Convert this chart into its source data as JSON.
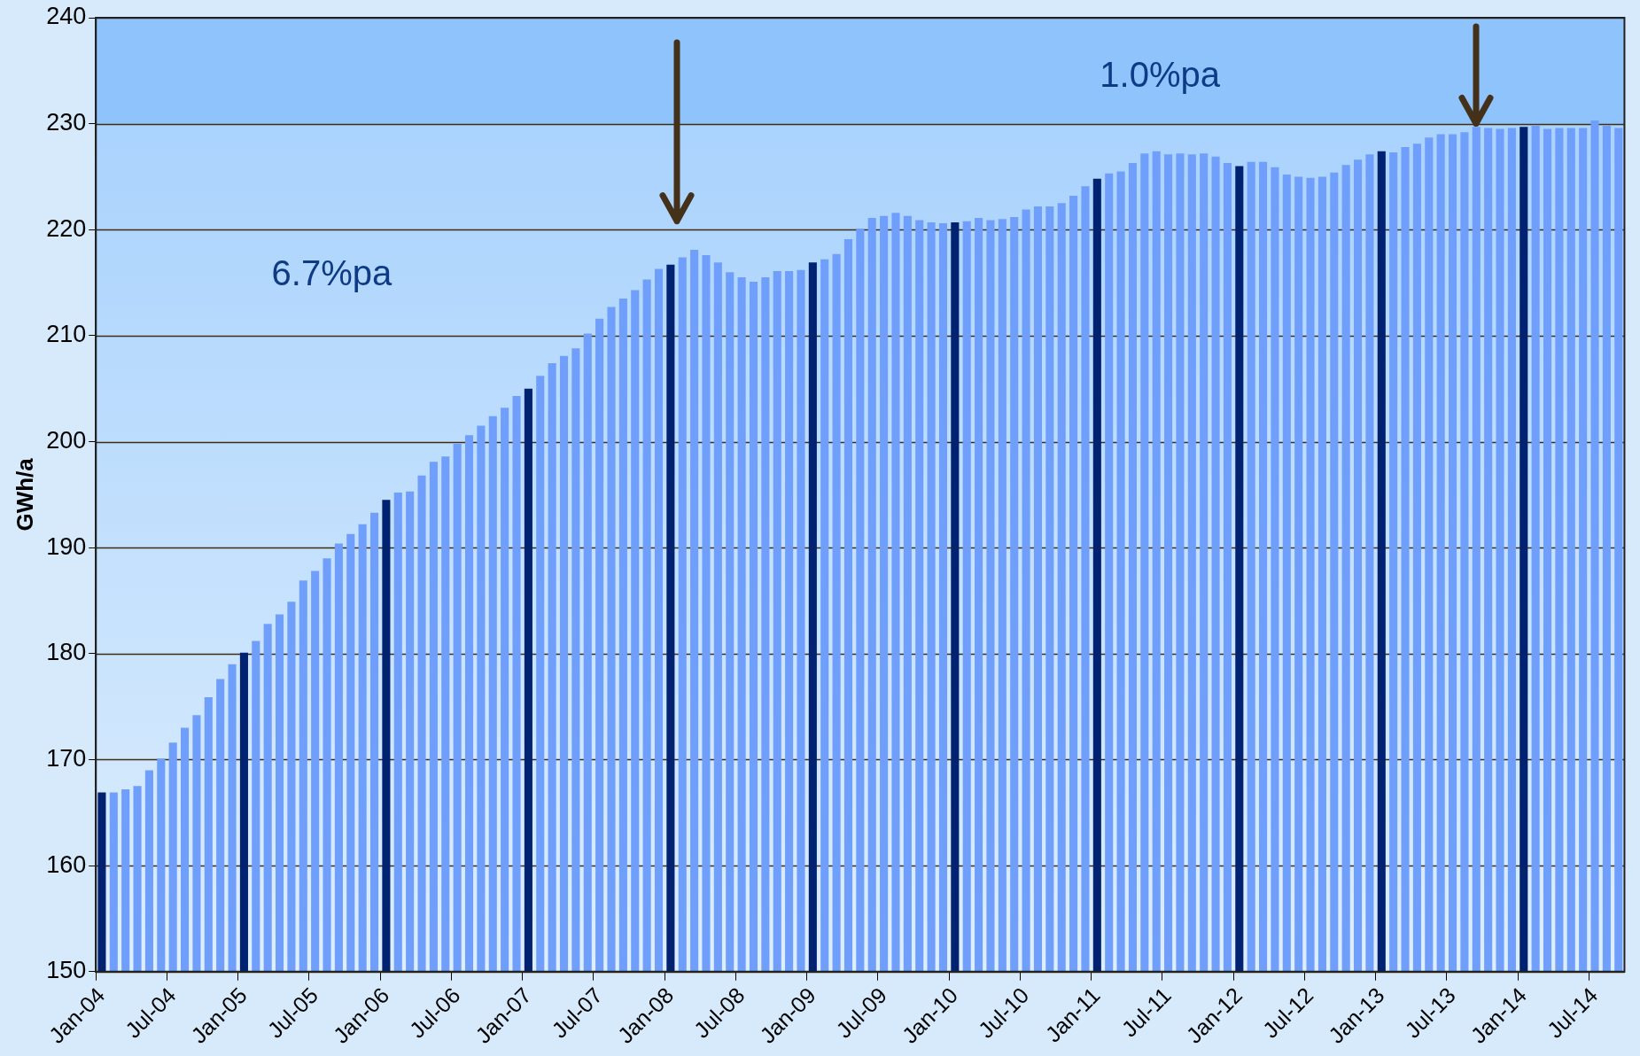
{
  "chart_data": {
    "type": "bar",
    "ylabel": "GWh/a",
    "categories": [
      "Jan-04",
      null,
      null,
      null,
      null,
      null,
      "Jul-04",
      null,
      null,
      null,
      null,
      null,
      "Jan-05",
      null,
      null,
      null,
      null,
      null,
      "Jul-05",
      null,
      null,
      null,
      null,
      null,
      "Jan-06",
      null,
      null,
      null,
      null,
      null,
      "Jul-06",
      null,
      null,
      null,
      null,
      null,
      "Jan-07",
      null,
      null,
      null,
      null,
      null,
      "Jul-07",
      null,
      null,
      null,
      null,
      null,
      "Jan-08",
      null,
      null,
      null,
      null,
      null,
      "Jul-08",
      null,
      null,
      null,
      null,
      null,
      "Jan-09",
      null,
      null,
      null,
      null,
      null,
      "Jul-09",
      null,
      null,
      null,
      null,
      null,
      "Jan-10",
      null,
      null,
      null,
      null,
      null,
      "Jul-10",
      null,
      null,
      null,
      null,
      null,
      "Jan-11",
      null,
      null,
      null,
      null,
      null,
      "Jul-11",
      null,
      null,
      null,
      null,
      null,
      "Jan-12",
      null,
      null,
      null,
      null,
      null,
      "Jul-12",
      null,
      null,
      null,
      null,
      null,
      "Jan-13",
      null,
      null,
      null,
      null,
      null,
      "Jul-13",
      null,
      null,
      null,
      null,
      null,
      "Jan-14",
      null,
      null,
      null,
      null,
      null,
      "Jul-14",
      null,
      null
    ],
    "values": [
      166.9,
      166.9,
      167.2,
      167.5,
      169.0,
      170.1,
      171.6,
      173.0,
      174.2,
      175.9,
      177.6,
      179.0,
      180.1,
      181.2,
      182.8,
      183.7,
      184.9,
      186.9,
      187.8,
      189.0,
      190.4,
      191.3,
      192.2,
      193.3,
      194.5,
      195.2,
      195.3,
      196.8,
      198.1,
      198.6,
      199.8,
      200.6,
      201.5,
      202.4,
      203.2,
      204.3,
      205.0,
      206.2,
      207.4,
      208.1,
      208.8,
      210.2,
      211.6,
      212.7,
      213.5,
      214.3,
      215.3,
      216.3,
      216.7,
      217.4,
      218.1,
      217.6,
      216.9,
      216.0,
      215.5,
      215.1,
      215.5,
      216.1,
      216.1,
      216.2,
      216.9,
      217.2,
      217.7,
      219.1,
      220.1,
      221.1,
      221.3,
      221.6,
      221.3,
      220.9,
      220.7,
      220.6,
      220.7,
      220.8,
      221.1,
      220.9,
      221.0,
      221.2,
      221.9,
      222.2,
      222.2,
      222.5,
      223.2,
      224.1,
      224.8,
      225.3,
      225.5,
      226.3,
      227.2,
      227.4,
      227.1,
      227.2,
      227.1,
      227.2,
      226.9,
      226.3,
      226.0,
      226.4,
      226.4,
      225.9,
      225.2,
      225.0,
      224.9,
      225.0,
      225.4,
      226.1,
      226.6,
      227.1,
      227.4,
      227.3,
      227.8,
      228.1,
      228.7,
      229.0,
      229.0,
      229.2,
      229.7,
      229.6,
      229.5,
      229.6,
      229.7,
      229.8,
      229.5,
      229.6,
      229.6,
      229.6,
      230.3,
      229.8,
      229.6
    ],
    "colors": [
      "#002270",
      "#6f9ffb",
      "#6f9ffb",
      "#6f9ffb",
      "#6f9ffb",
      "#6f9ffb",
      "#6f9ffb",
      "#6f9ffb",
      "#6f9ffb",
      "#6f9ffb",
      "#6f9ffb",
      "#6f9ffb",
      "#002270",
      "#6f9ffb",
      "#6f9ffb",
      "#6f9ffb",
      "#6f9ffb",
      "#6f9ffb",
      "#6f9ffb",
      "#6f9ffb",
      "#6f9ffb",
      "#6f9ffb",
      "#6f9ffb",
      "#6f9ffb",
      "#002270",
      "#6f9ffb",
      "#6f9ffb",
      "#6f9ffb",
      "#6f9ffb",
      "#6f9ffb",
      "#6f9ffb",
      "#6f9ffb",
      "#6f9ffb",
      "#6f9ffb",
      "#6f9ffb",
      "#6f9ffb",
      "#002270",
      "#6f9ffb",
      "#6f9ffb",
      "#6f9ffb",
      "#6f9ffb",
      "#6f9ffb",
      "#6f9ffb",
      "#6f9ffb",
      "#6f9ffb",
      "#6f9ffb",
      "#6f9ffb",
      "#6f9ffb",
      "#002270",
      "#6f9ffb",
      "#6f9ffb",
      "#6f9ffb",
      "#6f9ffb",
      "#6f9ffb",
      "#6f9ffb",
      "#6f9ffb",
      "#6f9ffb",
      "#6f9ffb",
      "#6f9ffb",
      "#6f9ffb",
      "#002270",
      "#6f9ffb",
      "#6f9ffb",
      "#6f9ffb",
      "#6f9ffb",
      "#6f9ffb",
      "#6f9ffb",
      "#6f9ffb",
      "#6f9ffb",
      "#6f9ffb",
      "#6f9ffb",
      "#6f9ffb",
      "#002270",
      "#6f9ffb",
      "#6f9ffb",
      "#6f9ffb",
      "#6f9ffb",
      "#6f9ffb",
      "#6f9ffb",
      "#6f9ffb",
      "#6f9ffb",
      "#6f9ffb",
      "#6f9ffb",
      "#6f9ffb",
      "#002270",
      "#6f9ffb",
      "#6f9ffb",
      "#6f9ffb",
      "#6f9ffb",
      "#6f9ffb",
      "#6f9ffb",
      "#6f9ffb",
      "#6f9ffb",
      "#6f9ffb",
      "#6f9ffb",
      "#6f9ffb",
      "#002270",
      "#6f9ffb",
      "#6f9ffb",
      "#6f9ffb",
      "#6f9ffb",
      "#6f9ffb",
      "#6f9ffb",
      "#6f9ffb",
      "#6f9ffb",
      "#6f9ffb",
      "#6f9ffb",
      "#6f9ffb",
      "#002270",
      "#6f9ffb",
      "#6f9ffb",
      "#6f9ffb",
      "#6f9ffb",
      "#6f9ffb",
      "#6f9ffb",
      "#6f9ffb",
      "#6f9ffb",
      "#6f9ffb",
      "#6f9ffb",
      "#6f9ffb",
      "#002270",
      "#6f9ffb",
      "#6f9ffb",
      "#6f9ffb",
      "#6f9ffb",
      "#6f9ffb",
      "#6f9ffb",
      "#6f9ffb",
      "#6f9ffb"
    ],
    "ylim": [
      150,
      240
    ],
    "yticks": [
      150,
      160,
      170,
      180,
      190,
      200,
      210,
      220,
      230,
      240
    ],
    "grid": "y",
    "bands": [
      {
        "axis": "y",
        "from": 230,
        "to": 240,
        "color": "#8fc3fb"
      }
    ],
    "annotations": [
      "6.7%pa",
      "1.0%pa"
    ]
  }
}
